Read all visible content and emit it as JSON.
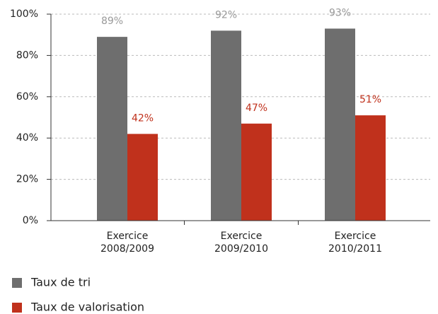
{
  "chart_data": {
    "type": "bar",
    "categories": [
      "Exercice 2008/2009",
      "Exercice 2009/2010",
      "Exercice 2010/2011"
    ],
    "series": [
      {
        "name": "Taux de tri",
        "color": "#6e6e6e",
        "label_color": "#999999",
        "values": [
          89,
          92,
          93
        ],
        "value_labels": [
          "89%",
          "92%",
          "93%"
        ]
      },
      {
        "name": "Taux de valorisation",
        "color": "#c0311c",
        "label_color": "#c0311c",
        "values": [
          42,
          47,
          51
        ],
        "value_labels": [
          "42%",
          "47%",
          "51%"
        ]
      }
    ],
    "ylim": [
      0,
      100
    ],
    "yticks": [
      {
        "value": 0,
        "label": "0%"
      },
      {
        "value": 20,
        "label": "20%"
      },
      {
        "value": 40,
        "label": "40%"
      },
      {
        "value": 60,
        "label": "60%"
      },
      {
        "value": 80,
        "label": "80%"
      },
      {
        "value": 100,
        "label": "100%"
      }
    ],
    "grid": true
  }
}
